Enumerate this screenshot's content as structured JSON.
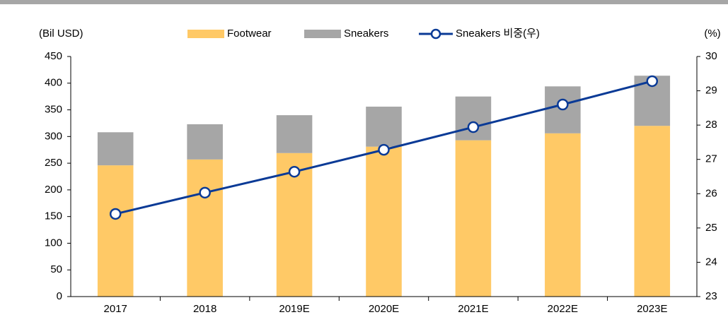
{
  "chart_data": {
    "type": "bar_line",
    "y_label": "(Bil USD)",
    "y2_label": "(%)",
    "categories": [
      "2017",
      "2018",
      "2019E",
      "2020E",
      "2021E",
      "2022E",
      "2023E"
    ],
    "series": [
      {
        "name": "Footwear",
        "color": "#FFC966",
        "type": "bar",
        "values": [
          246,
          257,
          269,
          281,
          293,
          306,
          320
        ]
      },
      {
        "name": "Sneakers",
        "color": "#A6A6A6",
        "type": "bar",
        "values": [
          62,
          66,
          71,
          75,
          82,
          88,
          94
        ]
      },
      {
        "name": "Sneakers 비중(우)",
        "color": "#0A3A96",
        "type": "line",
        "axis": "y2",
        "values": [
          25.41,
          26.03,
          26.64,
          27.28,
          27.94,
          28.6,
          29.28
        ]
      }
    ],
    "ylim": [
      0,
      450
    ],
    "yticks": [
      0,
      50,
      100,
      150,
      200,
      250,
      300,
      350,
      400,
      450
    ],
    "y2lim": [
      23,
      30
    ],
    "y2ticks": [
      23,
      24,
      25,
      26,
      27,
      28,
      29,
      30
    ]
  }
}
